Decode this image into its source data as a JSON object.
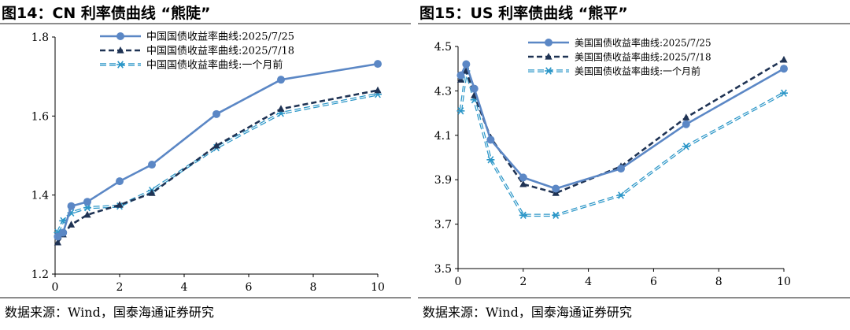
{
  "chart_data": [
    {
      "type": "line",
      "title": "图14：CN 利率债曲线 “熊陡”",
      "source": "数据来源：Wind，国泰海通证券研究",
      "xlabel": "",
      "ylabel": "",
      "xlim": [
        0,
        10
      ],
      "ylim": [
        1.2,
        1.8
      ],
      "xticks": [
        "0",
        "2",
        "4",
        "6",
        "8",
        "10"
      ],
      "yticks": [
        "1.2",
        "1.4",
        "1.6",
        "1.8"
      ],
      "legend_position": "top-left",
      "x": [
        0.083,
        0.25,
        0.5,
        1,
        2,
        3,
        5,
        7,
        10
      ],
      "series": [
        {
          "name": "中国国债收益率曲线:2025/7/25",
          "color": "#5b87c5",
          "style": "solid-circle",
          "values": [
            1.295,
            1.305,
            1.372,
            1.383,
            1.435,
            1.477,
            1.605,
            1.692,
            1.732
          ]
        },
        {
          "name": "中国国债收益率曲线:2025/7/18",
          "color": "#1f3354",
          "style": "dash-triangle",
          "values": [
            1.28,
            1.3,
            1.325,
            1.35,
            1.375,
            1.405,
            1.525,
            1.618,
            1.665
          ]
        },
        {
          "name": "中国国债收益率曲线:一个月前",
          "color": "#2d97c8",
          "style": "double-dash-star",
          "values": [
            1.305,
            1.335,
            1.355,
            1.368,
            1.372,
            1.412,
            1.52,
            1.607,
            1.655
          ]
        }
      ]
    },
    {
      "type": "line",
      "title": "图15：US 利率债曲线 “熊平”",
      "source": "数据来源：Wind，国泰海通证券研究",
      "xlabel": "",
      "ylabel": "",
      "xlim": [
        0,
        10
      ],
      "ylim": [
        3.5,
        4.5
      ],
      "xticks": [
        "0",
        "2",
        "4",
        "6",
        "8",
        "10"
      ],
      "yticks": [
        "3.5",
        "3.7",
        "3.9",
        "4.1",
        "4.3",
        "4.5"
      ],
      "legend_position": "top-center",
      "x": [
        0.083,
        0.25,
        0.5,
        1,
        2,
        3,
        5,
        7,
        10
      ],
      "series": [
        {
          "name": "美国国债收益率曲线:2025/7/25",
          "color": "#5b87c5",
          "style": "solid-circle",
          "values": [
            4.37,
            4.42,
            4.31,
            4.08,
            3.91,
            3.86,
            3.95,
            4.15,
            4.4
          ]
        },
        {
          "name": "美国国债收益率曲线:2025/7/18",
          "color": "#1f3354",
          "style": "dash-triangle",
          "values": [
            4.35,
            4.39,
            4.28,
            4.09,
            3.88,
            3.84,
            3.96,
            4.18,
            4.44
          ]
        },
        {
          "name": "美国国债收益率曲线:一个月前",
          "color": "#2d97c8",
          "style": "double-dash-star",
          "values": [
            4.21,
            4.39,
            4.26,
            3.99,
            3.74,
            3.74,
            3.83,
            4.05,
            4.29
          ]
        }
      ]
    }
  ]
}
